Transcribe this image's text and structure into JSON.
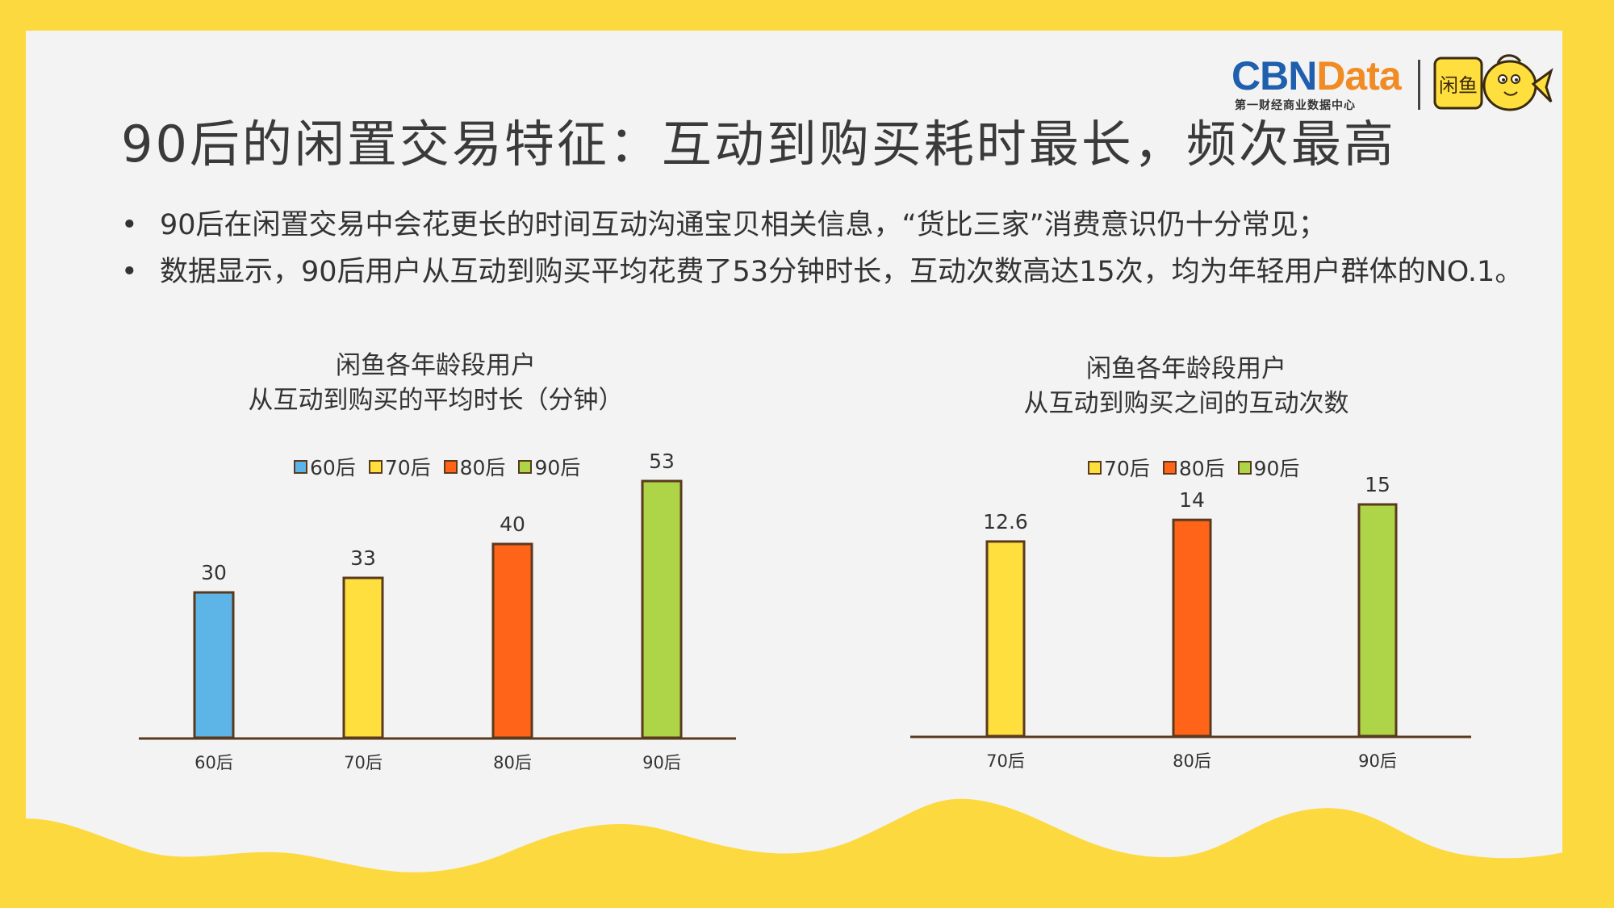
{
  "header": {
    "title": "90后的闲置交易特征：互动到购买耗时最长，频次最高",
    "logo_main": "CBN",
    "logo_accent": "Data",
    "logo_tagline": "第一财经商业数据中心",
    "partner_logo_text": "闲鱼",
    "colors": {
      "cbn_blue": "#1F5FAD",
      "cbn_orange": "#F18B24",
      "background": "#FDD940"
    }
  },
  "bullets": [
    {
      "marker": "•",
      "text": "90后在闲置交易中会花更长的时间互动沟通宝贝相关信息，“货比三家”消费意识仍十分常见；"
    },
    {
      "marker": "•",
      "text": "数据显示，90后用户从互动到购买平均花费了53分钟时长，互动次数高达15次，均为年轻用户群体的NO.1。"
    }
  ],
  "chart_data": [
    {
      "type": "bar",
      "title_lines": [
        "闲鱼各年龄段用户",
        "从互动到购买的平均时长（分钟）"
      ],
      "categories": [
        "60后",
        "70后",
        "80后",
        "90后"
      ],
      "values": [
        30,
        33,
        40,
        53
      ],
      "colors": [
        "#5DB4E6",
        "#FFDF3E",
        "#FF6418",
        "#AED447"
      ],
      "legend": [
        "60后",
        "70后",
        "80后",
        "90后"
      ],
      "legend_position": "top",
      "ylim": [
        0,
        53
      ],
      "grid": false,
      "data_labels": [
        "30",
        "33",
        "40",
        "53"
      ]
    },
    {
      "type": "bar",
      "title_lines": [
        "闲鱼各年龄段用户",
        "从互动到购买之间的互动次数"
      ],
      "categories": [
        "70后",
        "80后",
        "90后"
      ],
      "values": [
        12.6,
        14,
        15
      ],
      "colors": [
        "#FFDF3E",
        "#FF6418",
        "#AED447"
      ],
      "legend": [
        "70后",
        "80后",
        "90后"
      ],
      "legend_position": "top",
      "ylim": [
        0,
        15
      ],
      "grid": false,
      "data_labels": [
        "12.6",
        "14",
        "15"
      ]
    }
  ]
}
